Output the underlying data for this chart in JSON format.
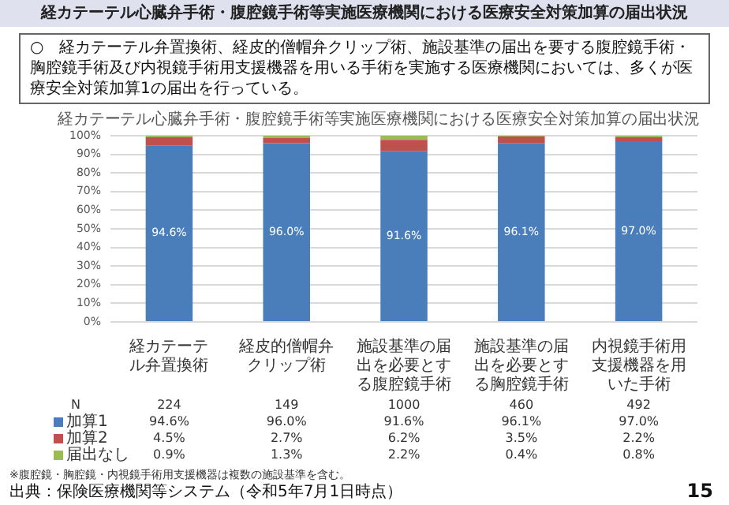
{
  "chart_data": {
    "type": "bar",
    "stacked": true,
    "title": "経カテーテル心臓弁手術・腹腔鏡手術等実施医療機関における医療安全対策加算の届出状況",
    "subtitle": "○　経カテーテル弁置換術、経皮的僧帽弁クリップ術、施設基準の届出を要する腹腔鏡手術・胸腔鏡手術及び内視鏡手術用支援機器を用いる手術を実施する医療機関においては、多くが医療安全対策加算1の届出を行っている。",
    "categories": [
      "経カテーテル弁置換術",
      "経皮的僧帽弁クリップ術",
      "施設基準の届出を必要とする腹腔鏡手術",
      "施設基準の届出を必要とする胸腔鏡手術",
      "内視鏡手術用支援機器を用いた手術"
    ],
    "series": [
      {
        "name": "加算1",
        "color": "#4a7ebb",
        "values": [
          94.6,
          96.0,
          91.6,
          96.1,
          97.0
        ],
        "value_labels": [
          "94.6%",
          "96.0%",
          "91.6%",
          "96.1%",
          "97.0%"
        ]
      },
      {
        "name": "加算2",
        "color": "#c0504d",
        "values": [
          4.5,
          2.7,
          6.2,
          3.5,
          2.2
        ],
        "value_labels": [
          "4.5%",
          "2.7%",
          "6.2%",
          "3.5%",
          "2.2%"
        ]
      },
      {
        "name": "届出なし",
        "color": "#9bbb59",
        "values": [
          0.9,
          1.3,
          2.2,
          0.4,
          0.8
        ],
        "value_labels": [
          "0.9%",
          "1.3%",
          "2.2%",
          "0.4%",
          "0.8%"
        ]
      }
    ],
    "ylim": [
      0,
      100
    ],
    "yticks": [
      {
        "value": 0,
        "label": "0%"
      },
      {
        "value": 10,
        "label": "10%"
      },
      {
        "value": 20,
        "label": "20%"
      },
      {
        "value": 30,
        "label": "30%"
      },
      {
        "value": 40,
        "label": "40%"
      },
      {
        "value": 50,
        "label": "50%"
      },
      {
        "value": 60,
        "label": "60%"
      },
      {
        "value": 70,
        "label": "70%"
      },
      {
        "value": 80,
        "label": "80%"
      },
      {
        "value": 90,
        "label": "90%"
      },
      {
        "value": 100,
        "label": "100%"
      }
    ],
    "grid": "y",
    "legend": "bottom left",
    "annotations": [
      "経カテーテル心臓弁手術・腹腔鏡手術等実施医療機関における医療安全対策加算の届出状況",
      "N",
      "224",
      "149",
      "1000",
      "460",
      "492",
      "※腹腔鏡・胸腔鏡・内視鏡手術用支援機器は複数の施設基準を含む。",
      "出典：保険医療機関等システム（令和5年7月1日時点）",
      "15"
    ]
  }
}
